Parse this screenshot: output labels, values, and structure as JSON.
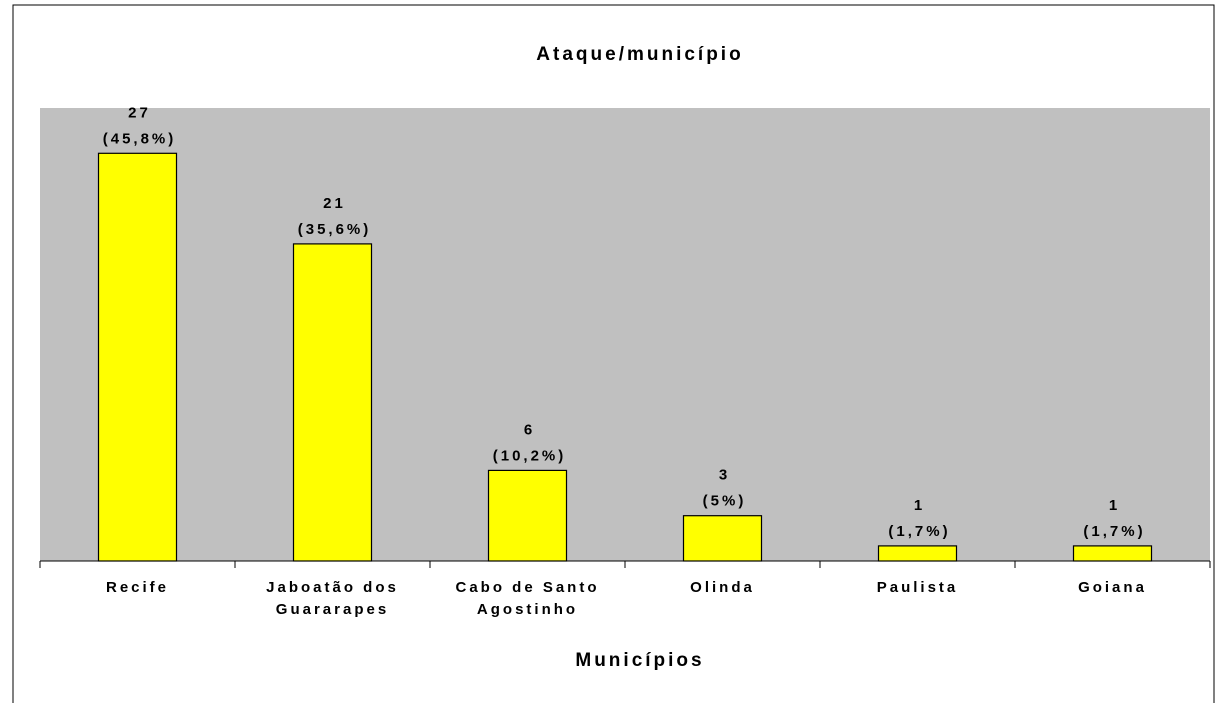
{
  "chart_data": {
    "type": "bar",
    "title": "Ataque/município",
    "x_label": "Municípios",
    "categories": [
      "Recife",
      "Jaboatão dos Guararapes",
      "Cabo de Santo Agostinho",
      "Olinda",
      "Paulista",
      "Goiana"
    ],
    "values": [
      27,
      21,
      6,
      3,
      1,
      1
    ],
    "percent_labels": [
      "(45,8%)",
      "(35,6%)",
      "(10,2%)",
      "(5%)",
      "(1,7%)",
      "(1,7%)"
    ],
    "color": "#ffff00",
    "ylim": [
      0,
      30
    ]
  }
}
